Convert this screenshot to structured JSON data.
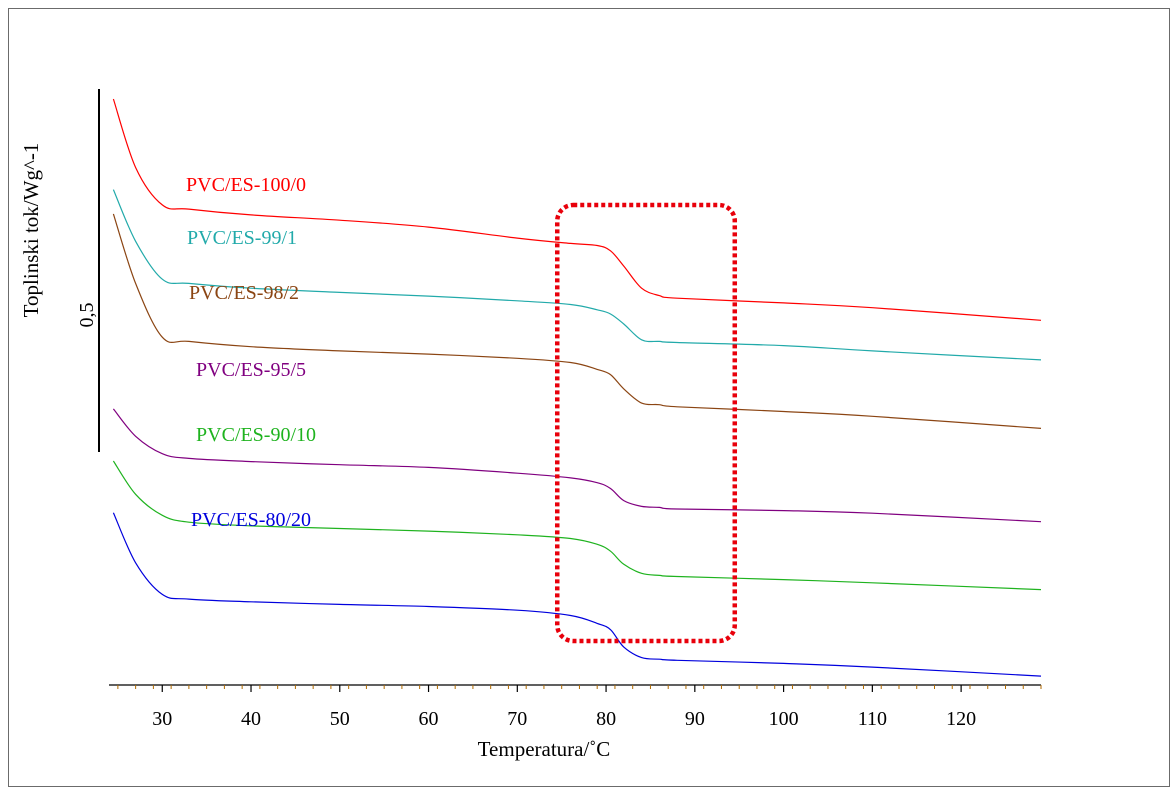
{
  "chart_data": {
    "type": "line",
    "xlabel": "Temperatura/˚C",
    "ylabel": "Toplinski tok/Wg^-1",
    "scale_bar_label": "0,5",
    "xlim": [
      24,
      129
    ],
    "x_ticks": [
      30,
      40,
      50,
      60,
      70,
      80,
      90,
      100,
      110,
      120
    ],
    "x_tick_labels": [
      "30",
      "40",
      "50",
      "60",
      "70",
      "80",
      "90",
      "100",
      "110",
      "120"
    ],
    "grid": false,
    "highlight_box": {
      "x_range": [
        74.5,
        94.5
      ],
      "color": "#e8000b",
      "style": "dotted"
    },
    "series": [
      {
        "name": "PVC/ES-100/0",
        "color": "#ff0000",
        "x": [
          24.5,
          27,
          30,
          33,
          40,
          50,
          60,
          70,
          76,
          79,
          80.5,
          82,
          84,
          86,
          88,
          100,
          110,
          129
        ],
        "y": [
          1.0,
          0.87,
          0.799,
          0.791,
          0.78,
          0.77,
          0.757,
          0.736,
          0.726,
          0.722,
          0.712,
          0.683,
          0.641,
          0.627,
          0.622,
          0.613,
          0.604,
          0.58
        ]
      },
      {
        "name": "PVC/ES-99/1",
        "color": "#22aaaa",
        "x": [
          24.5,
          27,
          30,
          33,
          40,
          50,
          60,
          70,
          76,
          79,
          80.5,
          82,
          84,
          86,
          88,
          100,
          110,
          129
        ],
        "y": [
          0.828,
          0.73,
          0.658,
          0.65,
          0.641,
          0.633,
          0.626,
          0.617,
          0.61,
          0.6,
          0.592,
          0.573,
          0.543,
          0.54,
          0.538,
          0.532,
          0.522,
          0.505
        ]
      },
      {
        "name": "PVC/ES-98/2",
        "color": "#8b4513",
        "x": [
          24.5,
          27,
          30,
          33,
          40,
          50,
          60,
          70,
          76,
          79,
          80.5,
          82,
          84,
          86,
          88,
          100,
          110,
          129
        ],
        "y": [
          0.782,
          0.65,
          0.548,
          0.54,
          0.53,
          0.522,
          0.516,
          0.508,
          0.5,
          0.487,
          0.477,
          0.45,
          0.423,
          0.42,
          0.416,
          0.407,
          0.398,
          0.375
        ]
      },
      {
        "name": "PVC/ES-95/5",
        "color": "#800080",
        "x": [
          24.5,
          27,
          30,
          33,
          40,
          50,
          60,
          70,
          76,
          79,
          80.5,
          82,
          84,
          86,
          88,
          100,
          110,
          129
        ],
        "y": [
          0.412,
          0.36,
          0.327,
          0.318,
          0.312,
          0.306,
          0.301,
          0.29,
          0.281,
          0.272,
          0.261,
          0.238,
          0.227,
          0.225,
          0.222,
          0.219,
          0.214,
          0.198
        ]
      },
      {
        "name": "PVC/ES-90/10",
        "color": "#1fb31f",
        "x": [
          24.5,
          27,
          30,
          33,
          40,
          50,
          60,
          70,
          76,
          79,
          80.5,
          82,
          84,
          86,
          88,
          100,
          110,
          129
        ],
        "y": [
          0.313,
          0.25,
          0.21,
          0.197,
          0.19,
          0.185,
          0.18,
          0.173,
          0.166,
          0.155,
          0.142,
          0.117,
          0.1,
          0.096,
          0.094,
          0.088,
          0.082,
          0.069
        ]
      },
      {
        "name": "PVC/ES-80/20",
        "color": "#0000dd",
        "x": [
          24.5,
          27,
          30,
          33,
          40,
          50,
          60,
          70,
          76,
          79,
          80.5,
          82,
          84,
          86,
          88,
          100,
          110,
          129
        ],
        "y": [
          0.215,
          0.12,
          0.06,
          0.051,
          0.046,
          0.041,
          0.037,
          0.03,
          0.02,
          0.005,
          -0.007,
          -0.04,
          -0.06,
          -0.063,
          -0.065,
          -0.071,
          -0.078,
          -0.095
        ]
      }
    ]
  }
}
